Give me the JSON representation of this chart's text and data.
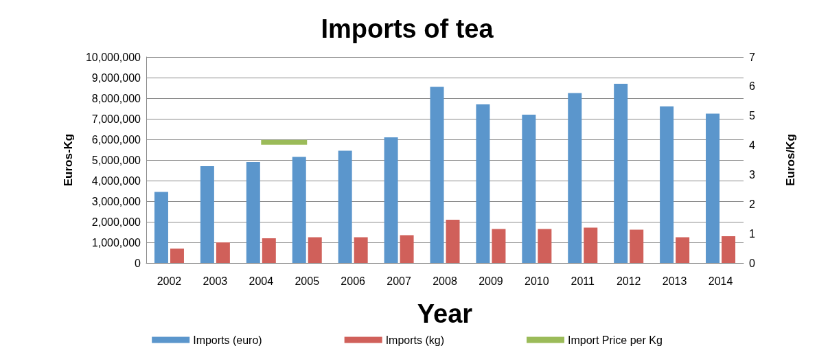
{
  "chart_data": {
    "type": "bar",
    "title": "Imports of tea",
    "xlabel": "Year",
    "ylabel": "Euros-Kg",
    "y2label": "Euros/Kg",
    "categories": [
      "2002",
      "2003",
      "2004",
      "2005",
      "2006",
      "2007",
      "2008",
      "2009",
      "2010",
      "2011",
      "2012",
      "2013",
      "2014"
    ],
    "series": [
      {
        "name": "Imports (euro)",
        "color": "#5b96cc",
        "values": [
          3450000,
          4700000,
          4900000,
          5150000,
          5450000,
          6100000,
          8550000,
          7700000,
          7200000,
          8250000,
          8700000,
          7600000,
          7250000
        ]
      },
      {
        "name": "Imports (kg)",
        "color": "#d0605a",
        "values": [
          700000,
          1000000,
          1200000,
          1250000,
          1250000,
          1350000,
          2100000,
          1650000,
          1650000,
          1720000,
          1620000,
          1250000,
          1300000
        ]
      },
      {
        "name": "Import Price per Kg",
        "type": "line",
        "axis": "y2",
        "color": "#9bbb59",
        "values": [
          null,
          null,
          4.1,
          4.1,
          null,
          null,
          null,
          null,
          null,
          null,
          null,
          null,
          null
        ]
      }
    ],
    "ylim": [
      0,
      10000000
    ],
    "yticks": [
      0,
      {
        "value": 1000000,
        "label": "1,000,000"
      },
      {
        "value": 2000000,
        "label": "2,000,000"
      },
      {
        "value": 3000000,
        "label": "3,000,000"
      },
      {
        "value": 4000000,
        "label": "4,000,000"
      },
      {
        "value": 5000000,
        "label": "5,000,000"
      },
      {
        "value": 6000000,
        "label": "6,000,000"
      },
      {
        "value": 7000000,
        "label": "7,000,000"
      },
      {
        "value": 8000000,
        "label": "8,000,000"
      },
      {
        "value": 9000000,
        "label": "9,000,000"
      },
      {
        "value": 10000000,
        "label": "10,000,000"
      }
    ],
    "y2lim": [
      0,
      7
    ],
    "y2ticks": [
      0,
      1,
      2,
      3,
      4,
      5,
      6,
      7
    ],
    "grid": "y",
    "legend": "bottom",
    "marker": "none"
  }
}
